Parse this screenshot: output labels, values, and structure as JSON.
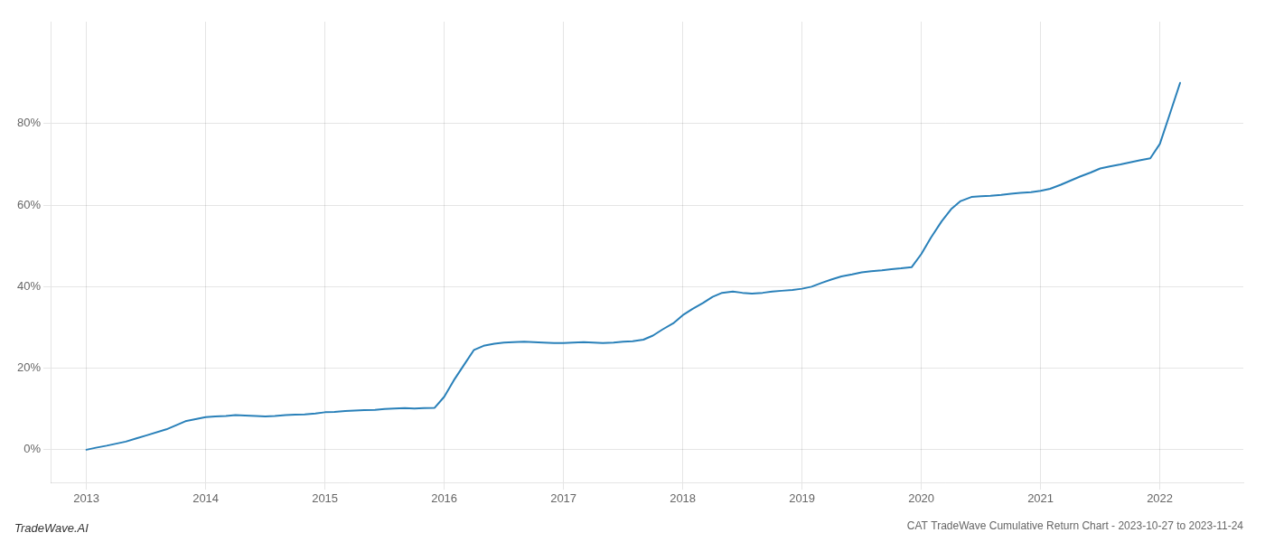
{
  "chart_data": {
    "type": "line",
    "title": "CAT TradeWave Cumulative Return Chart - 2023-10-27 to 2023-11-24",
    "annotations": [
      "TradeWave.AI"
    ],
    "x": [
      2013.0,
      2013.08,
      2013.17,
      2013.25,
      2013.33,
      2013.42,
      2013.5,
      2013.67,
      2013.75,
      2013.83,
      2014.0,
      2014.08,
      2014.17,
      2014.25,
      2014.33,
      2014.42,
      2014.5,
      2014.58,
      2014.67,
      2014.75,
      2014.83,
      2014.92,
      2015.0,
      2015.08,
      2015.17,
      2015.25,
      2015.33,
      2015.42,
      2015.5,
      2015.58,
      2015.67,
      2015.75,
      2015.83,
      2015.92,
      2016.0,
      2016.08,
      2016.17,
      2016.25,
      2016.33,
      2016.42,
      2016.5,
      2016.58,
      2016.67,
      2016.75,
      2016.83,
      2016.92,
      2017.0,
      2017.08,
      2017.17,
      2017.25,
      2017.33,
      2017.42,
      2017.5,
      2017.58,
      2017.67,
      2017.75,
      2017.83,
      2017.92,
      2018.0,
      2018.08,
      2018.17,
      2018.25,
      2018.33,
      2018.42,
      2018.5,
      2018.58,
      2018.67,
      2018.75,
      2018.83,
      2018.92,
      2019.0,
      2019.08,
      2019.17,
      2019.25,
      2019.33,
      2019.42,
      2019.5,
      2019.58,
      2019.67,
      2019.75,
      2019.83,
      2019.92,
      2020.0,
      2020.08,
      2020.17,
      2020.25,
      2020.33,
      2020.42,
      2020.5,
      2020.58,
      2020.67,
      2020.75,
      2020.83,
      2020.92,
      2021.0,
      2021.08,
      2021.17,
      2021.25,
      2021.33,
      2021.42,
      2021.5,
      2021.58,
      2021.67,
      2021.75,
      2021.83,
      2021.92,
      2022.0,
      2022.08,
      2022.17
    ],
    "values": [
      0.0,
      0.5,
      1.0,
      1.5,
      2.0,
      2.8,
      3.5,
      5.0,
      6.0,
      7.0,
      8.0,
      8.2,
      8.3,
      8.5,
      8.4,
      8.3,
      8.2,
      8.3,
      8.5,
      8.6,
      8.7,
      8.9,
      9.2,
      9.3,
      9.5,
      9.6,
      9.7,
      9.8,
      10.0,
      10.1,
      10.2,
      10.1,
      10.2,
      10.3,
      13.0,
      17.0,
      21.0,
      24.5,
      25.5,
      26.0,
      26.3,
      26.4,
      26.5,
      26.4,
      26.3,
      26.2,
      26.2,
      26.3,
      26.4,
      26.3,
      26.2,
      26.3,
      26.5,
      26.6,
      27.0,
      28.0,
      29.5,
      31.0,
      33.0,
      34.5,
      36.0,
      37.5,
      38.5,
      38.8,
      38.5,
      38.3,
      38.5,
      38.8,
      39.0,
      39.2,
      39.5,
      40.0,
      41.0,
      41.8,
      42.5,
      43.0,
      43.5,
      43.8,
      44.0,
      44.3,
      44.5,
      44.8,
      48.0,
      52.0,
      56.0,
      59.0,
      61.0,
      62.0,
      62.2,
      62.3,
      62.5,
      62.8,
      63.0,
      63.2,
      63.5,
      64.0,
      65.0,
      66.0,
      67.0,
      68.0,
      69.0,
      69.5,
      70.0,
      70.5,
      71.0,
      71.5,
      75.0,
      82.0,
      90.0
    ],
    "color": "#2980b9",
    "xlim": [
      2012.7,
      2022.7
    ],
    "xticks": [
      2013,
      2014,
      2015,
      2016,
      2017,
      2018,
      2019,
      2020,
      2021,
      2022
    ],
    "ylim": [
      -8,
      105
    ],
    "yticks": [
      {
        "value": 0,
        "label": "0%"
      },
      {
        "value": 20,
        "label": "20%"
      },
      {
        "value": 40,
        "label": "40%"
      },
      {
        "value": 60,
        "label": "60%"
      },
      {
        "value": 80,
        "label": "80%"
      }
    ],
    "grid": true
  }
}
